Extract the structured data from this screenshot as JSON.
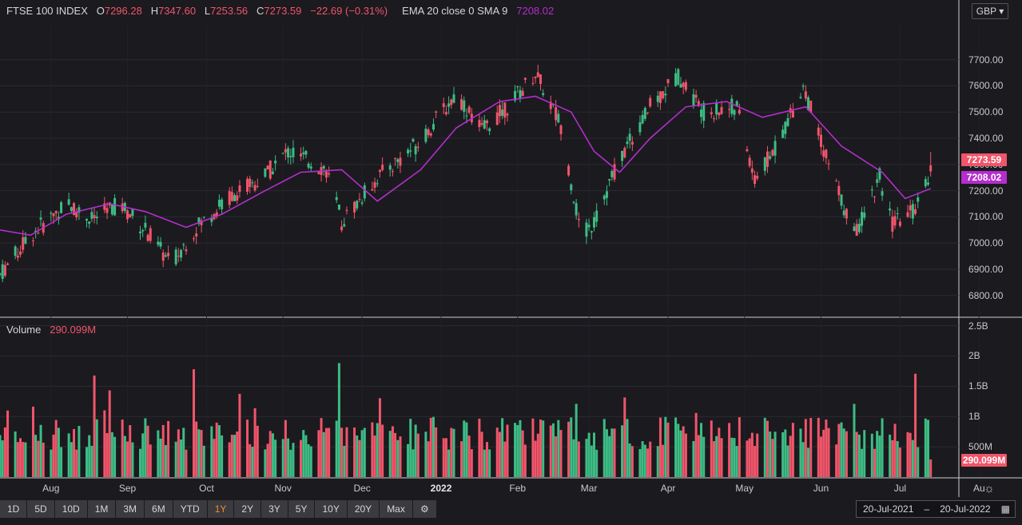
{
  "header": {
    "symbol": "FTSE 100 INDEX",
    "open_label": "O",
    "open": "7296.28",
    "high_label": "H",
    "high": "7347.60",
    "low_label": "L",
    "low": "7253.56",
    "close_label": "C",
    "close": "7273.59",
    "change": "−22.69 (−0.31%)",
    "indicator_label": "EMA 20 close 0 SMA 9",
    "indicator_value": "7208.02"
  },
  "currency": "GBP ▾",
  "volume_header": {
    "label": "Volume",
    "value": "290.099M"
  },
  "price_badges": {
    "last": "7273.59",
    "ema": "7208.02"
  },
  "volume_badge": "290.099M",
  "toolbar": {
    "ranges": [
      "1D",
      "5D",
      "10D",
      "1M",
      "3M",
      "6M",
      "YTD",
      "1Y",
      "2Y",
      "3Y",
      "5Y",
      "10Y",
      "20Y",
      "Max"
    ],
    "active": "1Y",
    "settings_icon": "gear-icon"
  },
  "date_range": {
    "from": "20-Jul-2021",
    "sep": "–",
    "to": "20-Jul-2022",
    "icon": "calendar-icon"
  },
  "colors": {
    "up": "#3dbc84",
    "down": "#f0556a",
    "ema": "#b32ecc",
    "background": "#1b1a1f"
  },
  "chart_data": {
    "type": "candlestick",
    "price_axis": {
      "ticks": [
        "7700.00",
        "7600.00",
        "7500.00",
        "7400.00",
        "7300.00",
        "7200.00",
        "7100.00",
        "7000.00",
        "6900.00",
        "6800.00"
      ],
      "ylim": [
        6720,
        7830
      ]
    },
    "volume_axis": {
      "ticks": [
        "2.5B",
        "2B",
        "1.5B",
        "1B",
        "500M"
      ],
      "ylim": [
        0,
        2600000000
      ]
    },
    "x_axis": {
      "labels": [
        "Aug",
        "Sep",
        "Oct",
        "Nov",
        "Dec",
        "2022",
        "Feb",
        "Mar",
        "Apr",
        "May",
        "Jun",
        "Jul",
        "Au"
      ],
      "bold": "2022"
    },
    "grid": true,
    "series": [
      {
        "name": "EMA 20 close 0 SMA 9",
        "kind": "line",
        "x": [
          "2021-07-20",
          "2021-08-01",
          "2021-08-15",
          "2021-09-01",
          "2021-09-15",
          "2021-10-01",
          "2021-10-15",
          "2021-11-01",
          "2021-11-15",
          "2021-12-01",
          "2021-12-15",
          "2022-01-01",
          "2022-01-15",
          "2022-02-01",
          "2022-02-15",
          "2022-03-01",
          "2022-03-10",
          "2022-03-20",
          "2022-04-01",
          "2022-04-15",
          "2022-05-01",
          "2022-05-15",
          "2022-06-01",
          "2022-06-15",
          "2022-07-01",
          "2022-07-10",
          "2022-07-20"
        ],
        "values": [
          7050,
          7030,
          7110,
          7150,
          7120,
          7060,
          7110,
          7200,
          7270,
          7280,
          7160,
          7280,
          7440,
          7540,
          7560,
          7500,
          7350,
          7270,
          7400,
          7520,
          7540,
          7480,
          7520,
          7370,
          7270,
          7170,
          7208
        ]
      },
      {
        "name": "candles",
        "kind": "ohlc",
        "key_points": [
          [
            "2021-07-20",
            6880
          ],
          [
            "2021-08-01",
            7030
          ],
          [
            "2021-08-15",
            7150
          ],
          [
            "2021-08-25",
            7090
          ],
          [
            "2021-09-05",
            7150
          ],
          [
            "2021-09-15",
            7050
          ],
          [
            "2021-09-25",
            6920
          ],
          [
            "2021-10-05",
            7060
          ],
          [
            "2021-10-20",
            7190
          ],
          [
            "2021-10-30",
            7240
          ],
          [
            "2021-11-10",
            7350
          ],
          [
            "2021-11-25",
            7280
          ],
          [
            "2021-12-01",
            7080
          ],
          [
            "2021-12-15",
            7250
          ],
          [
            "2021-12-31",
            7380
          ],
          [
            "2022-01-15",
            7570
          ],
          [
            "2022-01-25",
            7430
          ],
          [
            "2022-02-05",
            7530
          ],
          [
            "2022-02-15",
            7650
          ],
          [
            "2022-02-25",
            7450
          ],
          [
            "2022-03-05",
            7020
          ],
          [
            "2022-03-10",
            7080
          ],
          [
            "2022-03-20",
            7320
          ],
          [
            "2022-04-01",
            7520
          ],
          [
            "2022-04-12",
            7640
          ],
          [
            "2022-04-22",
            7500
          ],
          [
            "2022-05-05",
            7520
          ],
          [
            "2022-05-12",
            7240
          ],
          [
            "2022-05-20",
            7360
          ],
          [
            "2022-05-31",
            7600
          ],
          [
            "2022-06-10",
            7300
          ],
          [
            "2022-06-20",
            7030
          ],
          [
            "2022-06-30",
            7250
          ],
          [
            "2022-07-05",
            7070
          ],
          [
            "2022-07-13",
            7120
          ],
          [
            "2022-07-20",
            7273.59
          ]
        ]
      }
    ],
    "last_close": 7273.59,
    "last_volume": 290099000
  }
}
